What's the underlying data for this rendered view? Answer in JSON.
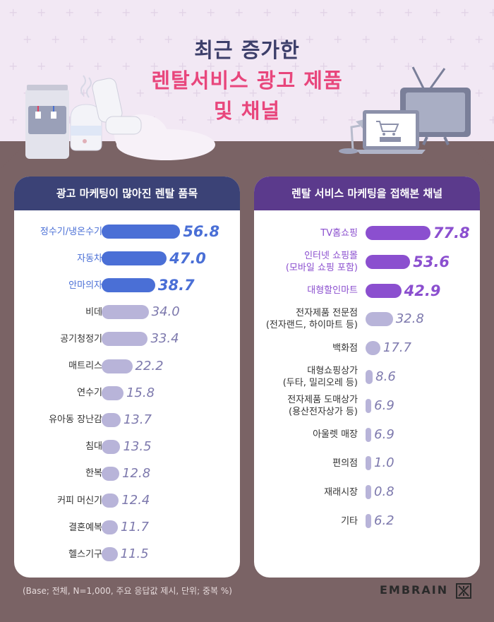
{
  "title": {
    "line1": "최근 증가한",
    "line2": "렌탈서비스 광고 제품",
    "line3": "및 채널"
  },
  "colors": {
    "highlight_left": "#4a6fd6",
    "highlight_right": "#8b4fcf",
    "normal_bar": "#b8b4d9",
    "normal_text": "#7d79ad",
    "panel_left_header": "#3b4276",
    "panel_right_header": "#5b3a8c",
    "title_pink": "#e8467c"
  },
  "chart_data": [
    {
      "type": "bar",
      "title": "광고 마케팅이 많아진 렌탈 품목",
      "categories": [
        "정수기/냉온수기",
        "자동차",
        "안마의자",
        "비데",
        "공기청정기",
        "매트리스",
        "연수기",
        "유아동 장난감",
        "침대",
        "한복",
        "커피 머신기",
        "결혼예복",
        "헬스기구"
      ],
      "values": [
        56.8,
        47.0,
        38.7,
        34.0,
        33.4,
        22.2,
        15.8,
        13.7,
        13.5,
        12.8,
        12.4,
        11.7,
        11.5
      ],
      "value_labels": [
        "56.8",
        "47.0",
        "38.7",
        "34.0",
        "33.4",
        "22.2",
        "15.8",
        "13.7",
        "13.5",
        "12.8",
        "12.4",
        "11.7",
        "11.5"
      ],
      "highlight_top": 3
    },
    {
      "type": "bar",
      "title": "렌탈 서비스 마케팅을 접해본 채널",
      "categories": [
        "TV홈쇼핑",
        "인터넷 쇼핑몰\n(모바일 쇼핑 포함)",
        "대형할인마트",
        "전자제품 전문점\n(전자랜드, 하이마트 등)",
        "백화점",
        "대형쇼핑상가\n(두타, 밀리오레 등)",
        "전자제품 도매상가\n(용산전자상가 등)",
        "아울렛 매장",
        "편의점",
        "재래시장",
        "기타"
      ],
      "values": [
        77.8,
        53.6,
        42.9,
        32.8,
        17.7,
        8.6,
        6.9,
        6.9,
        1.0,
        0.8,
        6.2
      ],
      "value_labels": [
        "77.8",
        "53.6",
        "42.9",
        "32.8",
        "17.7",
        "8.6",
        "6.9",
        "6.9",
        "1.0",
        "0.8",
        "6.2"
      ],
      "highlight_top": 3
    }
  ],
  "footnote": "(Base; 전체, N=1,000, 주요 응답값 제시, 단위; 중복 %)",
  "brand": "EMBRAIN"
}
